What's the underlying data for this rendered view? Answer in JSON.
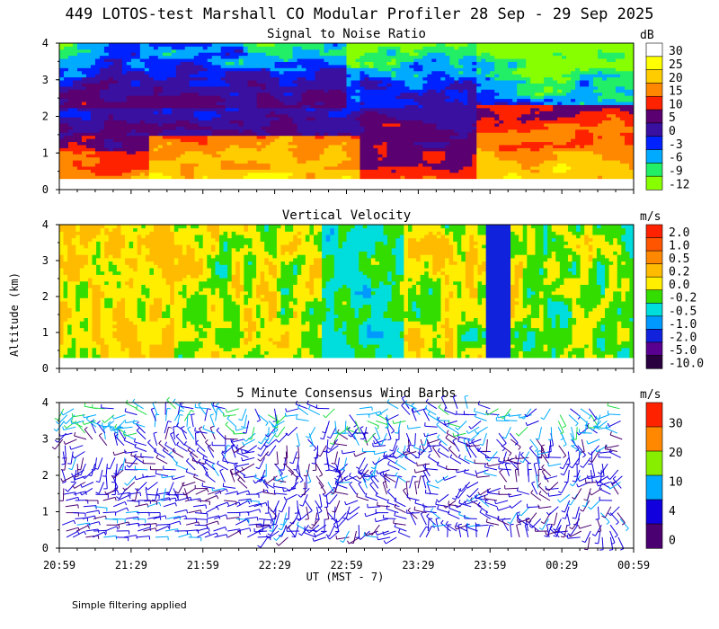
{
  "title": "449 LOTOS-test Marshall CO Modular Profiler 28 Sep - 29 Sep 2025",
  "ylabel": "Altitude (km)",
  "xlabel": "UT  (MST - 7)",
  "note": "Simple filtering applied",
  "x_ticks": [
    "20:59",
    "21:29",
    "21:59",
    "22:29",
    "22:59",
    "23:29",
    "23:59",
    "00:29",
    "00:59"
  ],
  "y_ticks": [
    "0",
    "1",
    "2",
    "3",
    "4"
  ],
  "chart_data": [
    {
      "type": "heatmap",
      "title": "Signal to Noise Ratio",
      "unit": "dB",
      "xlabel": "UT  (MST - 7)",
      "ylabel": "Altitude (km)",
      "x_range": [
        "20:59",
        "00:59"
      ],
      "ylim": [
        0,
        4
      ],
      "colorbar": {
        "labels": [
          "30",
          "25",
          "20",
          "15",
          "10",
          "5",
          "0",
          "-3",
          "-6",
          "-9",
          "-12"
        ],
        "colors": [
          "#ffffff",
          "#ffff00",
          "#ffcc00",
          "#ff8800",
          "#ff2200",
          "#5a0070",
          "#3a10a0",
          "#0022ff",
          "#00aaff",
          "#22ee66",
          "#88ff00"
        ]
      },
      "features": [
        {
          "x": "20:59-22:59",
          "y_km": [
            0.3,
            1.3
          ],
          "value_db": "5 to 10"
        },
        {
          "x": "21:40-22:59",
          "y_km": [
            0.3,
            1.5
          ],
          "value_db": "10 to 20"
        },
        {
          "x": "23:59-00:59",
          "y_km": [
            0.3,
            2.4
          ],
          "value_db": "10 to 20"
        },
        {
          "x": "20:59-23:20",
          "y_km": [
            2.2,
            4.0
          ],
          "value_db": "-9 to 0"
        },
        {
          "x": "23:29-23:59",
          "y_km": [
            1.5,
            4.0
          ],
          "value_db": "0 to 5"
        }
      ]
    },
    {
      "type": "heatmap",
      "title": "Vertical Velocity",
      "unit": "m/s",
      "xlabel": "UT  (MST - 7)",
      "ylabel": "Altitude (km)",
      "x_range": [
        "20:59",
        "00:59"
      ],
      "ylim": [
        0,
        4
      ],
      "colorbar": {
        "labels": [
          "2.0",
          "1.0",
          "0.5",
          "0.2",
          "0.0",
          "-0.2",
          "-0.5",
          "-1.0",
          "-2.0",
          "-5.0",
          "-10.0"
        ],
        "colors": [
          "#ff2200",
          "#ff5500",
          "#ff8800",
          "#ffbb00",
          "#ffee00",
          "#33dd00",
          "#00dddd",
          "#0099ff",
          "#1122dd",
          "#5a0090",
          "#2a0040"
        ]
      },
      "features": [
        {
          "x": "20:59-21:40",
          "y_km": [
            0.3,
            4.0
          ],
          "value_ms": "0.0 to 0.2"
        },
        {
          "x": "22:30-23:20",
          "y_km": [
            0.3,
            4.0
          ],
          "value_ms": "-0.5 to 0.0"
        },
        {
          "x": "23:59",
          "y_km": [
            0.3,
            4.0
          ],
          "value_ms": "-2.0 to -0.5"
        }
      ]
    },
    {
      "type": "wind_barbs",
      "title": "5 Minute Consensus Wind Barbs",
      "unit": "m/s",
      "xlabel": "UT  (MST - 7)",
      "ylabel": "Altitude (km)",
      "x_range": [
        "20:59",
        "00:59"
      ],
      "ylim": [
        0,
        4
      ],
      "colorbar": {
        "labels": [
          "30",
          "20",
          "10",
          "4",
          "0"
        ],
        "colors": [
          "#ff2200",
          "#ff8800",
          "#88ee00",
          "#00aaff",
          "#1100dd",
          "#4a0070"
        ]
      },
      "features": [
        {
          "y_km": [
            0.3,
            3.0
          ],
          "speed_ms": "0 to 4"
        },
        {
          "y_km": [
            3.0,
            4.0
          ],
          "speed_ms": "4 to 10"
        }
      ]
    }
  ]
}
